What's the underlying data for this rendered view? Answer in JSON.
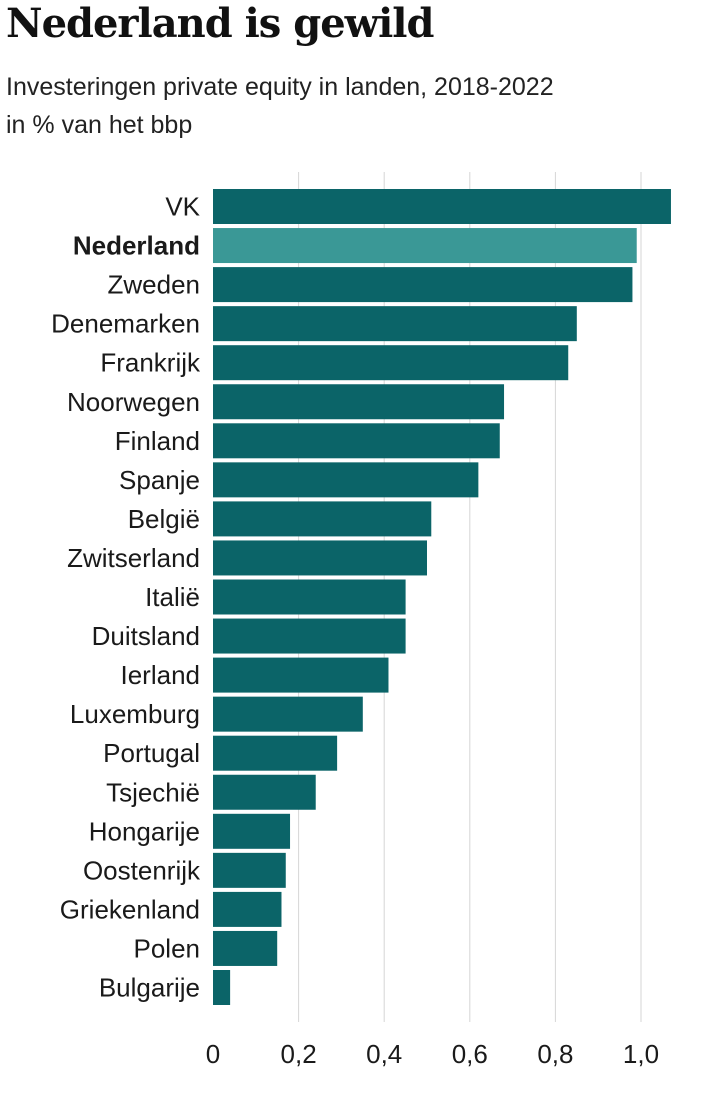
{
  "title": "Nederland is gewild",
  "subtitle": "Investeringen private equity in landen, 2018-2022",
  "unit": "in % van het bbp",
  "colors": {
    "bar": "#0b6468",
    "highlight": "#3a9896",
    "grid": "#d6d6d6"
  },
  "chart_data": {
    "type": "bar",
    "orientation": "horizontal",
    "title": "Nederland is gewild",
    "subtitle": "Investeringen private equity in landen, 2018-2022",
    "xlabel": "in % van het bbp",
    "ylabel": "",
    "xlim": [
      0,
      1.08
    ],
    "grid": true,
    "highlight": "Nederland",
    "ticks": [
      "0",
      "0,2",
      "0,4",
      "0,6",
      "0,8",
      "1,0"
    ],
    "categories": [
      "VK",
      "Nederland",
      "Zweden",
      "Denemarken",
      "Frankrijk",
      "Noorwegen",
      "Finland",
      "Spanje",
      "België",
      "Zwitserland",
      "Italië",
      "Duitsland",
      "Ierland",
      "Luxemburg",
      "Portugal",
      "Tsjechië",
      "Hongarije",
      "Oostenrijk",
      "Griekenland",
      "Polen",
      "Bulgarije"
    ],
    "values": [
      1.07,
      0.99,
      0.98,
      0.85,
      0.83,
      0.68,
      0.67,
      0.62,
      0.51,
      0.5,
      0.45,
      0.45,
      0.41,
      0.35,
      0.29,
      0.24,
      0.18,
      0.17,
      0.16,
      0.15,
      0.04
    ]
  }
}
